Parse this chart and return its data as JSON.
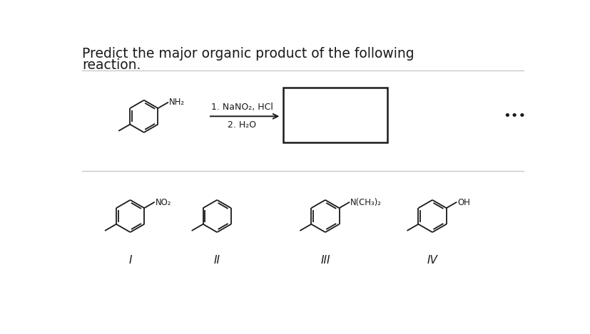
{
  "title_line1": "Predict the major organic product of the following",
  "title_line2": "reaction.",
  "reagents_line1": "1. NaNO₂, HCl",
  "reagents_line2": "2. H₂O",
  "dots": "•••",
  "label_I": "I",
  "label_II": "II",
  "label_III": "III",
  "label_IV": "IV",
  "sub_NH2": "NH₂",
  "sub_NO2": "NO₂",
  "sub_NCH3": "N(CH₃)₂",
  "sub_OH": "OH",
  "bg_color": "#ffffff",
  "text_color": "#1a1a1a",
  "line_color": "#aaaaaa",
  "structure_color": "#1a1a1a",
  "box_color": "#1a1a1a"
}
